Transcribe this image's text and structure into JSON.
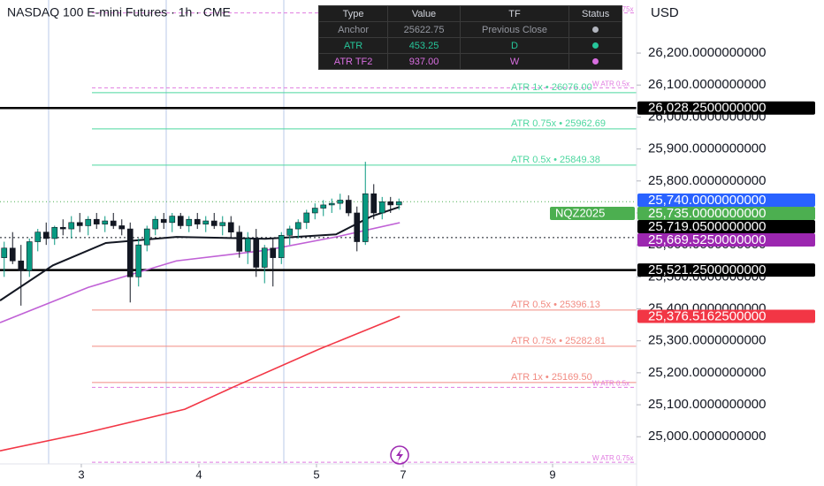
{
  "chart_data": {
    "type": "candlestick",
    "title": "NASDAQ 100 E-mini Futures · 1h · CME",
    "currency": "USD",
    "xlim": [
      0,
      75.79
    ],
    "xticks": [
      {
        "value": 9.68,
        "label": "3"
      },
      {
        "value": 23.68,
        "label": "4"
      },
      {
        "value": 37.68,
        "label": "5"
      },
      {
        "value": 48,
        "label": "7"
      },
      {
        "value": 65.79,
        "label": "9"
      }
    ],
    "ylim": [
      24915,
      26366
    ],
    "yticks": [
      {
        "value": 26200,
        "label": "26,200.0000000000"
      },
      {
        "value": 26100,
        "label": "26,100.0000000000"
      },
      {
        "value": 26000,
        "label": "26,000.0000000000"
      },
      {
        "value": 25900,
        "label": "25,900.0000000000"
      },
      {
        "value": 25800,
        "label": "25,800.0000000000"
      },
      {
        "value": 25700,
        "label": "25,700.0000000000"
      },
      {
        "value": 25600,
        "label": "25,600.0000000000"
      },
      {
        "value": 25500,
        "label": "25,500.0000000000"
      },
      {
        "value": 25400,
        "label": "25,400.0000000000"
      },
      {
        "value": 25300,
        "label": "25,300.0000000000"
      },
      {
        "value": 25200,
        "label": "25,200.0000000000"
      },
      {
        "value": 25100,
        "label": "25,100.0000000000"
      },
      {
        "value": 25000,
        "label": "25,000.0000000000"
      }
    ],
    "up_color": "#089981",
    "down_color": "#131722",
    "open": [
      25560,
      25590,
      25550,
      25520,
      25610,
      25640,
      25620,
      25655,
      25650,
      25670,
      25660,
      25680,
      25665,
      25675,
      25660,
      25650,
      25500,
      25600,
      25650,
      25680,
      25670,
      25690,
      25660,
      25680,
      25665,
      25675,
      25660,
      25670,
      25640,
      25580,
      25620,
      25530,
      25590,
      25560,
      25630,
      25650,
      25670,
      25700,
      25715,
      25725,
      25730,
      25740,
      25700,
      25610,
      25760,
      25700,
      25735,
      25725
    ],
    "high": [
      25610,
      25640,
      25600,
      25620,
      25650,
      25670,
      25660,
      25680,
      25690,
      25700,
      25690,
      25700,
      25690,
      25700,
      25680,
      25670,
      25620,
      25660,
      25690,
      25700,
      25700,
      25700,
      25690,
      25700,
      25690,
      25700,
      25690,
      25690,
      25660,
      25640,
      25650,
      25600,
      25620,
      25640,
      25660,
      25680,
      25710,
      25730,
      25740,
      25745,
      25760,
      25755,
      25720,
      25860,
      25790,
      25750,
      25750,
      25745
    ],
    "low": [
      25500,
      25540,
      25410,
      25500,
      25580,
      25600,
      25600,
      25630,
      25620,
      25640,
      25630,
      25650,
      25640,
      25650,
      25630,
      25420,
      25470,
      25580,
      25630,
      25650,
      25640,
      25650,
      25640,
      25650,
      25640,
      25650,
      25630,
      25620,
      25560,
      25540,
      25500,
      25480,
      25470,
      25540,
      25600,
      25620,
      25650,
      25680,
      25690,
      25700,
      25710,
      25690,
      25580,
      25600,
      25680,
      25680,
      25700,
      25710
    ],
    "close": [
      25590,
      25550,
      25520,
      25610,
      25640,
      25620,
      25655,
      25650,
      25670,
      25660,
      25680,
      25665,
      25675,
      25660,
      25650,
      25500,
      25600,
      25650,
      25680,
      25670,
      25690,
      25660,
      25680,
      25665,
      25675,
      25660,
      25670,
      25640,
      25580,
      25620,
      25530,
      25590,
      25560,
      25630,
      25650,
      25670,
      25700,
      25715,
      25725,
      25730,
      25740,
      25700,
      25610,
      25760,
      25700,
      25735,
      25725,
      25735
    ],
    "lines": [
      {
        "color": "#f23645",
        "x": [
          0,
          10,
          22,
          28,
          38,
          47.6
        ],
        "values": [
          24956,
          25011,
          25086,
          25158,
          25274,
          25376.51625
        ]
      },
      {
        "color": "#c061d6",
        "x": [
          0,
          10.5,
          21,
          31.6,
          40,
          47.6
        ],
        "values": [
          25357,
          25467,
          25550,
          25583,
          25625,
          25669.525
        ]
      },
      {
        "color": "#131722",
        "x": [
          0,
          6.3,
          12.6,
          21,
          31.6,
          40,
          44.2,
          47.6
        ],
        "values": [
          25426,
          25536,
          25606,
          25625,
          25619,
          25633,
          25689,
          25719.05
        ]
      }
    ],
    "levels": [
      {
        "value": 26325.5,
        "label": "W ATR 0.75x",
        "color": "#e07be0",
        "dash": "4 3"
      },
      {
        "value": 26091.25,
        "label": "W ATR 0.5x",
        "color": "#e07be0",
        "dash": "4 3"
      },
      {
        "value": 26076,
        "label": "ATR 1x • 26076.00",
        "color": "#4cd79f",
        "dash": "none"
      },
      {
        "value": 26028.25,
        "color": "#000000",
        "dash": "none"
      },
      {
        "value": 25962.69,
        "label": "ATR 0.75x • 25962.69",
        "color": "#4cd79f",
        "dash": "none"
      },
      {
        "value": 25849.38,
        "label": "ATR 0.5x • 25849.38",
        "color": "#4cd79f",
        "dash": "none"
      },
      {
        "value": 25735,
        "color": "#4caf50",
        "dash": "1 3"
      },
      {
        "value": 25622.75,
        "color": "#131722",
        "dash": "2 3"
      },
      {
        "value": 25521.25,
        "color": "#000000",
        "dash": "none"
      },
      {
        "value": 25396.13,
        "label": "ATR 0.5x • 25396.13",
        "color": "#f28b82",
        "dash": "none"
      },
      {
        "value": 25282.81,
        "label": "ATR 0.75x • 25282.81",
        "color": "#f28b82",
        "dash": "none"
      },
      {
        "value": 25169.5,
        "label": "ATR 1x • 25169.50",
        "color": "#f28b82",
        "dash": "none"
      },
      {
        "value": 25154.25,
        "label": "W ATR 0.5x",
        "color": "#e07be0",
        "dash": "4 3"
      },
      {
        "value": 24920.25,
        "label": "W ATR 0.75x",
        "color": "#e07be0",
        "dash": "4 3"
      }
    ],
    "price_tags": [
      {
        "value": 26028.25,
        "label": "26,028.2500000000",
        "color": "#000000"
      },
      {
        "value": 25740,
        "label": "25,740.0000000000",
        "color": "#2962ff"
      },
      {
        "value": 25735,
        "label": "25,735.0000000000",
        "color": "#4caf50",
        "name": "NQZ2025"
      },
      {
        "value": 25719.05,
        "label": "25,719.0500000000",
        "color": "#000000"
      },
      {
        "value": 25669.525,
        "label": "25,669.5250000000",
        "color": "#9c27b0"
      },
      {
        "value": 25521.25,
        "label": "25,521.2500000000",
        "color": "#000000"
      },
      {
        "value": 25376.51625,
        "label": "25,376.5162500000",
        "color": "#f23645"
      }
    ]
  },
  "table": {
    "headers": [
      "Type",
      "Value",
      "TF",
      "Status"
    ],
    "rows": [
      [
        "Anchor",
        "25622.75",
        "Previous Close"
      ],
      [
        "ATR",
        "453.25",
        "D"
      ],
      [
        "ATR TF2",
        "937.00",
        "W"
      ]
    ],
    "row_colors": [
      "#9598a1",
      "#26c69a",
      "#d86ee0"
    ],
    "status_colors": [
      "#b2b5be",
      "#26c69a",
      "#d86ee0"
    ]
  }
}
